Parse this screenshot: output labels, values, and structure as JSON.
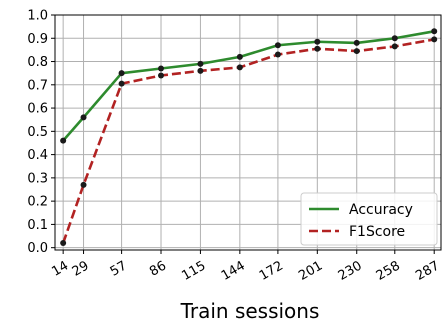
{
  "chart_data": {
    "type": "line",
    "title": "",
    "xlabel": "Train sessions",
    "ylabel": "",
    "x_tick_labels": [
      "14",
      "29",
      "57",
      "86",
      "115",
      "144",
      "172",
      "201",
      "230",
      "258",
      "287"
    ],
    "x": [
      14,
      29,
      57,
      86,
      115,
      144,
      172,
      201,
      230,
      258,
      287
    ],
    "xlim": [
      8,
      292
    ],
    "y_tick_labels": [
      "0.0",
      "0.1",
      "0.2",
      "0.3",
      "0.4",
      "0.5",
      "0.6",
      "0.7",
      "0.8",
      "0.9",
      "1.0"
    ],
    "ylim": [
      -0.01,
      1.0
    ],
    "grid": true,
    "legend_position": "lower-right",
    "series": [
      {
        "name": "Accuracy",
        "color": "#2e8b2e",
        "line_style": "solid",
        "values": [
          0.46,
          0.56,
          0.75,
          0.77,
          0.79,
          0.82,
          0.87,
          0.885,
          0.88,
          0.9,
          0.93
        ]
      },
      {
        "name": "F1Score",
        "color": "#b22222",
        "line_style": "dashed",
        "values": [
          0.02,
          0.27,
          0.705,
          0.74,
          0.76,
          0.775,
          0.83,
          0.855,
          0.845,
          0.865,
          0.895
        ]
      }
    ],
    "marker_color": "#1a1a1a"
  }
}
